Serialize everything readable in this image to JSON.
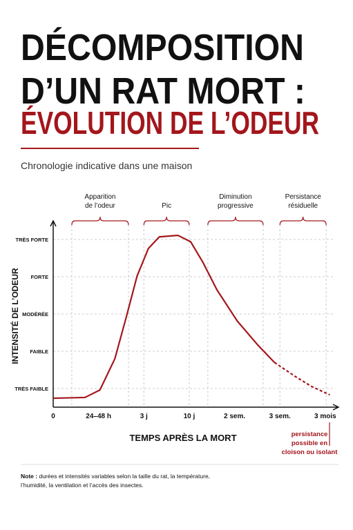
{
  "chart_data": {
    "type": "line",
    "title": [
      "DÉCOMPOSITION",
      "D’UN RAT MORT :"
    ],
    "title_highlight": "ÉVOLUTION DE L’ODEUR",
    "subtitle": "Chronologie indicative dans une maison",
    "x_label": "TEMPS APRÈS LA MORT",
    "y_label": "INTENSITÉ DE L’ODEUR",
    "xlim": [
      0,
      6.2
    ],
    "xticks": [
      {
        "value": 0,
        "label": "0"
      },
      {
        "value": 1,
        "label": "24–48 h"
      },
      {
        "value": 2,
        "label": "3 j"
      },
      {
        "value": 3,
        "label": "10 j"
      },
      {
        "value": 4,
        "label": "2 sem."
      },
      {
        "value": 5,
        "label": "3 sem."
      },
      {
        "value": 6,
        "label": "3 mois"
      }
    ],
    "ylim": [
      0.5,
      5.5
    ],
    "yticks": [
      {
        "value": 1,
        "label": "TRÈS FAIBLE"
      },
      {
        "value": 2,
        "label": "FAIBLE"
      },
      {
        "value": 3,
        "label": "MODÉRÉE"
      },
      {
        "value": 4,
        "label": "FORTE"
      },
      {
        "value": 5,
        "label": "TRÈS FORTE"
      }
    ],
    "grid": true,
    "color": "#a3161c",
    "series": [
      {
        "style": "solid",
        "color": "#a3161c",
        "x": [
          0,
          0.7,
          1.03,
          1.36,
          1.61,
          1.85,
          2.1,
          2.34,
          2.75,
          3.03,
          3.3,
          3.61,
          4.06,
          4.51,
          4.88
        ],
        "values": [
          0.74,
          0.76,
          0.96,
          1.8,
          2.91,
          4.02,
          4.76,
          5.07,
          5.11,
          4.94,
          4.39,
          3.65,
          2.81,
          2.17,
          1.7
        ]
      },
      {
        "style": "dashed",
        "color": "#a3161c",
        "x": [
          4.88,
          5.33,
          5.69,
          6.1
        ],
        "values": [
          1.7,
          1.33,
          1.06,
          0.83
        ]
      }
    ],
    "phases": [
      {
        "label": [
          "Apparition",
          "de l’odeur"
        ],
        "x": [
          0.41,
          1.66
        ]
      },
      {
        "label": [
          "Pic"
        ],
        "x": [
          2,
          3
        ]
      },
      {
        "label": [
          "Diminution",
          "progressive"
        ],
        "x": [
          3.41,
          4.63
        ]
      },
      {
        "label": [
          "Persistance",
          "résiduelle"
        ],
        "x": [
          5,
          6.02
        ]
      }
    ],
    "annotation": [
      "persistance",
      "possible en",
      "cloison ou isolant"
    ],
    "note_label": "Note :",
    "note": [
      "durées et intensités variables selon la taille du rat, la température,",
      "l’humidité, la ventilation et l’accès des insectes."
    ]
  }
}
